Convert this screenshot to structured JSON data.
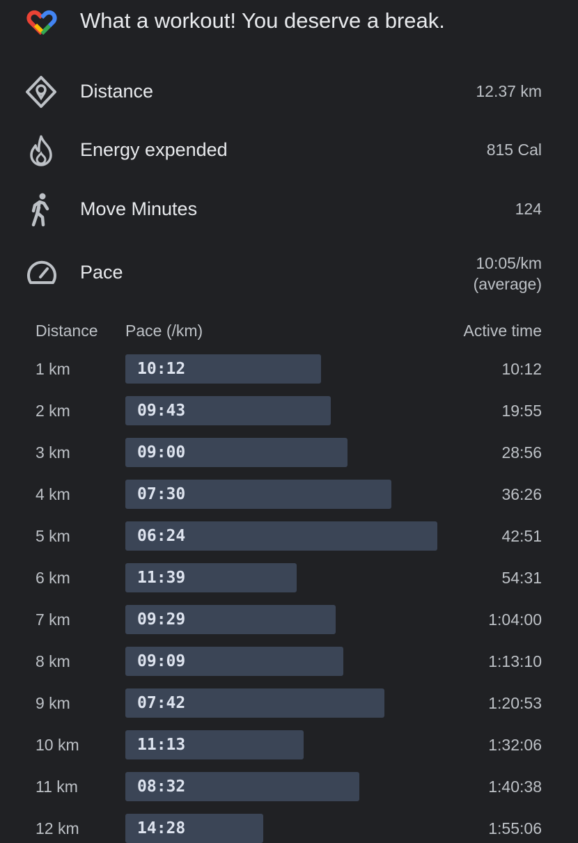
{
  "header": {
    "title": "What a workout! You deserve a break."
  },
  "stats": [
    {
      "label": "Distance",
      "value": "12.37 km"
    },
    {
      "label": "Energy expended",
      "value": "815 Cal"
    },
    {
      "label": "Move Minutes",
      "value": "124"
    },
    {
      "label": "Pace",
      "value": "10:05/km",
      "note": "(average)"
    }
  ],
  "table": {
    "columns": [
      "Distance",
      "Pace (/km)",
      "Active time"
    ],
    "rows": [
      [
        "1 km",
        "10:12",
        "10:12"
      ],
      [
        "2 km",
        "09:43",
        "19:55"
      ],
      [
        "3 km",
        "09:00",
        "28:56"
      ],
      [
        "4 km",
        "07:30",
        "36:26"
      ],
      [
        "5 km",
        "06:24",
        "42:51"
      ],
      [
        "6 km",
        "11:39",
        "54:31"
      ],
      [
        "7 km",
        "09:29",
        "1:04:00"
      ],
      [
        "8 km",
        "09:09",
        "1:13:10"
      ],
      [
        "9 km",
        "07:42",
        "1:20:53"
      ],
      [
        "10 km",
        "11:13",
        "1:32:06"
      ],
      [
        "11 km",
        "08:32",
        "1:40:38"
      ],
      [
        "12 km",
        "14:28",
        "1:55:06"
      ]
    ]
  }
}
